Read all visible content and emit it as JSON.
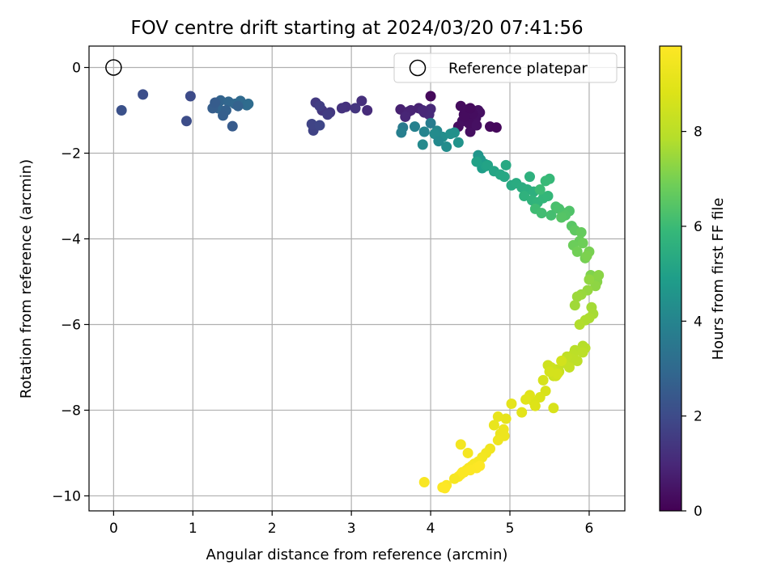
{
  "chart_data": {
    "type": "scatter",
    "title": "FOV centre drift starting at 2024/03/20 07:41:56",
    "xlabel": "Angular distance from reference (arcmin)",
    "ylabel": "Rotation from reference (arcmin)",
    "xlim": [
      -0.31,
      6.45
    ],
    "ylim": [
      -10.35,
      0.5
    ],
    "xticks": [
      0,
      1,
      2,
      3,
      4,
      5,
      6
    ],
    "yticks": [
      0,
      -2,
      -4,
      -6,
      -8,
      -10
    ],
    "grid": true,
    "colormap": "viridis",
    "colorbar": {
      "label": "Hours from first FF file",
      "range": [
        0,
        9.8
      ],
      "ticks": [
        0,
        2,
        4,
        6,
        8
      ]
    },
    "legend": {
      "position": "top-right",
      "entries": [
        {
          "label": "Reference platepar",
          "marker": "open-circle"
        }
      ]
    },
    "reference_point": {
      "x": 0,
      "y": 0
    },
    "series": [
      {
        "x": [
          4.0,
          4.38,
          4.47,
          4.55,
          4.42,
          4.5,
          4.6,
          4.62,
          4.75,
          4.83,
          4.35,
          4.5,
          4.45,
          4.57,
          4.4,
          4.53,
          4.48,
          4.43,
          4.58,
          4.5,
          3.62,
          3.75,
          3.92,
          4.0,
          3.85,
          3.72,
          3.98,
          3.68,
          3.9,
          3.13,
          3.05,
          3.2,
          2.93,
          2.88,
          2.63,
          2.73,
          2.55,
          2.7,
          2.6,
          0.97,
          0.37,
          0.1,
          0.92,
          2.52,
          2.5,
          2.6,
          1.35,
          1.32,
          1.45,
          1.53,
          1.6,
          1.68,
          1.7,
          1.57,
          1.42,
          1.38,
          1.25,
          1.28,
          1.5,
          3.65,
          3.63,
          3.8,
          3.92,
          4.08,
          4.0,
          3.9,
          4.2,
          4.15,
          4.25,
          4.3,
          4.35,
          4.05,
          4.1,
          4.6,
          4.63,
          4.68,
          4.65,
          4.58,
          4.7,
          4.72,
          4.8,
          4.88,
          4.93,
          4.95,
          5.02,
          5.08,
          5.15,
          5.22,
          5.3,
          5.25,
          5.18,
          5.28,
          5.35,
          5.42,
          5.48,
          5.5,
          5.45,
          5.38,
          5.32,
          5.4,
          5.52,
          5.58,
          5.62,
          5.68,
          5.75,
          5.7,
          5.65,
          5.78,
          5.82,
          5.9,
          5.88,
          5.8,
          5.92,
          5.85,
          5.95,
          6.0,
          5.97,
          6.02,
          6.05,
          6.1,
          6.12,
          6.08,
          6.0,
          5.98,
          5.9,
          5.85,
          5.82,
          6.03,
          6.05,
          6.0,
          5.95,
          5.88,
          5.92,
          5.95,
          5.82,
          5.8,
          5.78,
          5.72,
          5.68,
          5.75,
          5.62,
          5.58,
          5.55,
          5.52,
          5.48,
          5.58,
          5.65,
          5.6,
          5.92,
          5.85,
          5.5,
          5.42,
          5.45,
          5.38,
          5.3,
          5.32,
          5.25,
          5.2,
          5.15,
          5.02,
          4.95,
          4.85,
          4.8,
          4.88,
          4.93,
          5.55,
          4.92,
          4.85,
          4.75,
          4.7,
          4.65,
          4.6,
          4.55,
          4.52,
          4.48,
          4.45,
          4.42,
          4.38,
          4.35,
          4.4,
          4.5,
          4.58,
          4.62,
          4.3,
          4.2,
          4.15,
          4.18,
          3.92,
          4.47,
          4.38
        ],
        "y": [
          -0.67,
          -0.9,
          -0.98,
          -1.05,
          -1.1,
          -1.15,
          -1.0,
          -1.05,
          -1.38,
          -1.4,
          -1.38,
          -1.5,
          -1.2,
          -1.18,
          -1.25,
          -1.08,
          -1.3,
          -1.15,
          -1.35,
          -0.95,
          -0.98,
          -1.0,
          -1.05,
          -0.97,
          -0.95,
          -1.03,
          -1.1,
          -1.15,
          -1.0,
          -0.78,
          -0.95,
          -1.0,
          -0.92,
          -0.95,
          -1.0,
          -1.05,
          -0.82,
          -1.1,
          -0.9,
          -0.67,
          -0.63,
          -1.0,
          -1.25,
          -1.47,
          -1.32,
          -1.35,
          -0.77,
          -0.95,
          -0.8,
          -0.85,
          -0.78,
          -0.88,
          -0.85,
          -0.9,
          -1.0,
          -1.12,
          -0.95,
          -0.82,
          -1.37,
          -1.4,
          -1.52,
          -1.38,
          -1.5,
          -1.48,
          -1.3,
          -1.8,
          -1.85,
          -1.62,
          -1.55,
          -1.52,
          -1.75,
          -1.55,
          -1.72,
          -2.05,
          -2.15,
          -2.25,
          -2.35,
          -2.2,
          -2.3,
          -2.28,
          -2.42,
          -2.5,
          -2.55,
          -2.28,
          -2.75,
          -2.7,
          -2.8,
          -2.85,
          -2.9,
          -2.55,
          -3.0,
          -3.1,
          -3.15,
          -3.05,
          -3.0,
          -2.6,
          -2.65,
          -2.85,
          -3.3,
          -3.4,
          -3.45,
          -3.25,
          -3.3,
          -3.4,
          -3.35,
          -3.45,
          -3.5,
          -3.7,
          -3.8,
          -3.85,
          -4.05,
          -4.15,
          -4.1,
          -4.3,
          -4.45,
          -4.3,
          -4.4,
          -4.85,
          -4.95,
          -5.0,
          -4.85,
          -5.1,
          -4.95,
          -5.2,
          -5.3,
          -5.35,
          -5.55,
          -5.6,
          -5.75,
          -5.85,
          -5.9,
          -6.0,
          -6.5,
          -6.55,
          -6.6,
          -6.7,
          -6.8,
          -6.75,
          -6.9,
          -7.0,
          -7.1,
          -7.05,
          -7.2,
          -7.0,
          -6.95,
          -7.2,
          -6.85,
          -7.15,
          -6.65,
          -6.85,
          -7.1,
          -7.3,
          -7.55,
          -7.7,
          -7.8,
          -7.9,
          -7.65,
          -7.75,
          -8.05,
          -7.85,
          -8.2,
          -8.15,
          -8.35,
          -8.55,
          -8.6,
          -7.95,
          -8.45,
          -8.7,
          -8.9,
          -9.0,
          -9.1,
          -9.2,
          -9.25,
          -9.3,
          -9.35,
          -9.4,
          -9.45,
          -9.5,
          -9.55,
          -9.45,
          -9.4,
          -9.35,
          -9.3,
          -9.6,
          -9.75,
          -9.8,
          -9.82,
          -9.68,
          -9.0,
          -8.8
        ],
        "hours": [
          0.2,
          0.25,
          0.3,
          0.35,
          0.28,
          0.32,
          0.4,
          0.38,
          0.22,
          0.18,
          0.3,
          0.35,
          0.33,
          0.36,
          0.34,
          0.31,
          0.29,
          0.27,
          0.37,
          0.24,
          0.8,
          0.9,
          0.95,
          1.0,
          0.85,
          0.88,
          1.05,
          0.92,
          0.98,
          1.2,
          1.35,
          1.1,
          1.25,
          1.3,
          1.4,
          1.45,
          1.5,
          1.55,
          1.6,
          2.0,
          2.1,
          2.2,
          2.05,
          1.75,
          1.8,
          1.85,
          2.8,
          2.85,
          2.9,
          2.95,
          3.0,
          3.05,
          3.1,
          2.75,
          2.7,
          2.65,
          2.6,
          2.55,
          2.5,
          3.6,
          3.8,
          3.9,
          4.0,
          4.1,
          3.7,
          4.2,
          4.3,
          4.35,
          4.4,
          4.45,
          4.5,
          4.25,
          4.15,
          4.6,
          4.7,
          4.8,
          4.9,
          5.0,
          5.05,
          5.1,
          5.15,
          5.2,
          5.25,
          5.3,
          5.35,
          5.4,
          5.45,
          5.5,
          5.55,
          5.6,
          5.65,
          5.7,
          5.75,
          5.8,
          5.85,
          5.9,
          5.95,
          6.0,
          6.05,
          6.1,
          6.15,
          6.2,
          6.25,
          6.3,
          6.35,
          6.4,
          6.45,
          6.5,
          6.6,
          6.7,
          6.75,
          6.8,
          6.85,
          6.9,
          6.95,
          7.0,
          7.05,
          7.1,
          7.15,
          7.2,
          7.25,
          7.3,
          7.35,
          7.4,
          7.45,
          7.5,
          7.55,
          7.6,
          7.65,
          7.7,
          7.75,
          7.8,
          7.85,
          7.9,
          7.95,
          8.0,
          8.05,
          8.1,
          8.15,
          8.2,
          8.25,
          8.3,
          8.35,
          8.4,
          8.45,
          8.5,
          8.55,
          8.6,
          8.0,
          8.05,
          8.6,
          8.65,
          8.7,
          8.75,
          8.8,
          8.85,
          8.9,
          8.95,
          9.0,
          9.05,
          9.1,
          9.15,
          9.2,
          9.25,
          9.3,
          8.7,
          9.3,
          9.35,
          9.4,
          9.45,
          9.5,
          9.55,
          9.6,
          9.62,
          9.64,
          9.66,
          9.68,
          9.7,
          9.72,
          9.74,
          9.76,
          9.78,
          9.8,
          9.6,
          9.7,
          9.75,
          9.8,
          9.65,
          9.55,
          9.5
        ]
      }
    ]
  }
}
